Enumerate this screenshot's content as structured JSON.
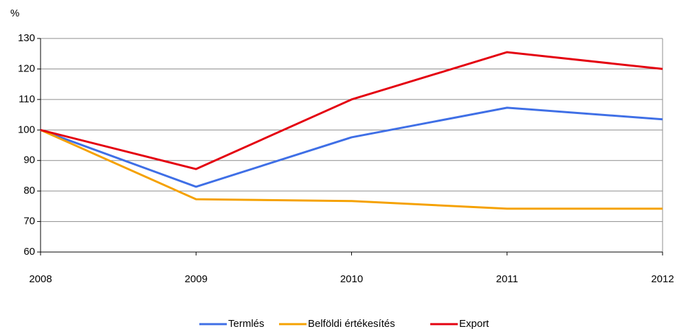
{
  "chart_data": {
    "type": "line",
    "y_label": "%",
    "categories": [
      "2008",
      "2009",
      "2010",
      "2011",
      "2012"
    ],
    "series": [
      {
        "name": "Termlés",
        "color": "#3f6fe6",
        "values": [
          100,
          81.4,
          97.6,
          107.3,
          103.5
        ]
      },
      {
        "name": "Belföldi értékesítés",
        "color": "#f5a100",
        "values": [
          100,
          77.3,
          76.7,
          74.2,
          74.2
        ]
      },
      {
        "name": "Export",
        "color": "#e4000f",
        "values": [
          100,
          87.2,
          110,
          125.5,
          120
        ]
      }
    ],
    "ylim": [
      60,
      130
    ],
    "yticks": [
      60,
      70,
      80,
      90,
      100,
      110,
      120,
      130
    ],
    "grid": true,
    "legend": "bottom"
  }
}
